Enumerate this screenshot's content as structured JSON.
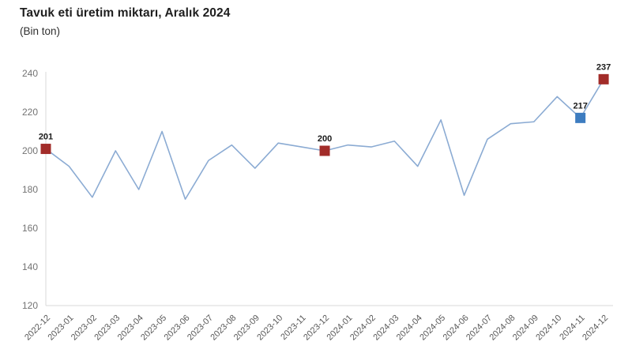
{
  "header": {
    "title": "Tavuk eti üretim miktarı, Aralık 2024",
    "subtitle": "(Bin ton)"
  },
  "chart_data": {
    "type": "line",
    "title": "Tavuk eti üretim miktarı, Aralık 2024",
    "ylabel": "(Bin ton)",
    "xlabel": "",
    "ylim": [
      120,
      240
    ],
    "ytick_step": 20,
    "grid": false,
    "legend": "none",
    "line_color": "#8babd3",
    "axis_color": "#d9d9d9",
    "categories": [
      "2022-12",
      "2023-01",
      "2023-02",
      "2023-03",
      "2023-04",
      "2023-05",
      "2023-06",
      "2023-07",
      "2023-08",
      "2023-09",
      "2023-10",
      "2023-11",
      "2023-12",
      "2024-01",
      "2024-02",
      "2024-03",
      "2024-04",
      "2024-05",
      "2024-06",
      "2024-07",
      "2024-08",
      "2024-09",
      "2024-10",
      "2024-11",
      "2024-12"
    ],
    "values": [
      201,
      192,
      176,
      200,
      180,
      210,
      175,
      195,
      203,
      191,
      204,
      202,
      200,
      203,
      202,
      205,
      192,
      216,
      177,
      206,
      214,
      215,
      228,
      217,
      237
    ],
    "markers": [
      {
        "index": 0,
        "category": "2022-12",
        "value": 201,
        "label": "201",
        "color": "#a22c29"
      },
      {
        "index": 12,
        "category": "2023-12",
        "value": 200,
        "label": "200",
        "color": "#a22c29"
      },
      {
        "index": 23,
        "category": "2024-11",
        "value": 217,
        "label": "217",
        "color": "#3d7cc0"
      },
      {
        "index": 24,
        "category": "2024-12",
        "value": 237,
        "label": "237",
        "color": "#a22c29"
      }
    ]
  }
}
